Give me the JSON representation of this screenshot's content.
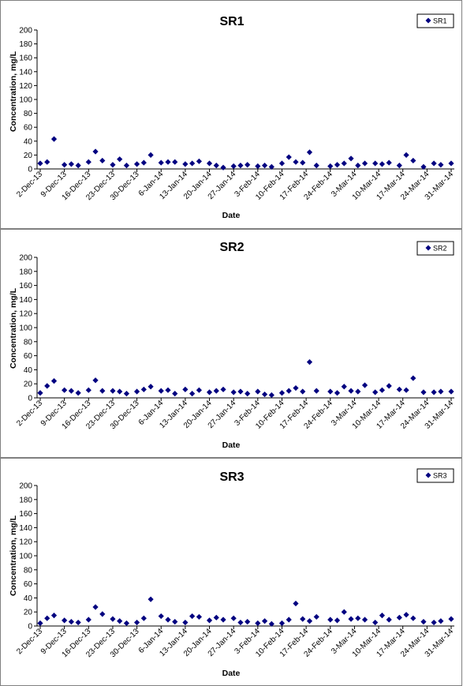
{
  "chart_data": [
    {
      "type": "scatter",
      "title": "SR1",
      "xlabel": "Date",
      "ylabel": "Concentration, mg/L",
      "ylim": [
        0,
        200
      ],
      "yticks": [
        0,
        20,
        40,
        60,
        80,
        100,
        120,
        140,
        160,
        180,
        200
      ],
      "xlim": [
        "2013-12-02",
        "2014-03-31"
      ],
      "xticks": [
        "2-Dec-13",
        "9-Dec-13",
        "16-Dec-13",
        "23-Dec-13",
        "30-Dec-13",
        "6-Jan-14",
        "13-Jan-14",
        "20-Jan-14",
        "27-Jan-14",
        "3-Feb-14",
        "10-Feb-14",
        "17-Feb-14",
        "24-Feb-14",
        "3-Mar-14",
        "10-Mar-14",
        "17-Mar-14",
        "24-Mar-14",
        "31-Mar-14"
      ],
      "legend": "top-right",
      "grid": false,
      "marker_color": "#000080",
      "series": [
        {
          "name": "SR1",
          "points": [
            [
              "2013-12-02",
              8
            ],
            [
              "2013-12-04",
              10
            ],
            [
              "2013-12-06",
              43
            ],
            [
              "2013-12-09",
              6
            ],
            [
              "2013-12-11",
              7
            ],
            [
              "2013-12-13",
              5
            ],
            [
              "2013-12-16",
              10
            ],
            [
              "2013-12-18",
              25
            ],
            [
              "2013-12-20",
              12
            ],
            [
              "2013-12-23",
              6
            ],
            [
              "2013-12-25",
              14
            ],
            [
              "2013-12-27",
              5
            ],
            [
              "2013-12-30",
              7
            ],
            [
              "2014-01-01",
              9
            ],
            [
              "2014-01-03",
              20
            ],
            [
              "2014-01-06",
              9
            ],
            [
              "2014-01-08",
              10
            ],
            [
              "2014-01-10",
              10
            ],
            [
              "2014-01-13",
              7
            ],
            [
              "2014-01-15",
              8
            ],
            [
              "2014-01-17",
              11
            ],
            [
              "2014-01-20",
              8
            ],
            [
              "2014-01-22",
              5
            ],
            [
              "2014-01-24",
              2
            ],
            [
              "2014-01-27",
              4
            ],
            [
              "2014-01-29",
              5
            ],
            [
              "2014-01-31",
              6
            ],
            [
              "2014-02-03",
              4
            ],
            [
              "2014-02-05",
              5
            ],
            [
              "2014-02-07",
              3
            ],
            [
              "2014-02-10",
              8
            ],
            [
              "2014-02-12",
              17
            ],
            [
              "2014-02-14",
              10
            ],
            [
              "2014-02-16",
              9
            ],
            [
              "2014-02-18",
              24
            ],
            [
              "2014-02-20",
              5
            ],
            [
              "2014-02-24",
              4
            ],
            [
              "2014-02-26",
              6
            ],
            [
              "2014-02-28",
              8
            ],
            [
              "2014-03-02",
              15
            ],
            [
              "2014-03-04",
              5
            ],
            [
              "2014-03-06",
              8
            ],
            [
              "2014-03-09",
              8
            ],
            [
              "2014-03-11",
              7
            ],
            [
              "2014-03-13",
              9
            ],
            [
              "2014-03-16",
              5
            ],
            [
              "2014-03-18",
              20
            ],
            [
              "2014-03-20",
              12
            ],
            [
              "2014-03-23",
              3
            ],
            [
              "2014-03-26",
              8
            ],
            [
              "2014-03-28",
              6
            ],
            [
              "2014-03-31",
              8
            ]
          ]
        }
      ]
    },
    {
      "type": "scatter",
      "title": "SR2",
      "xlabel": "Date",
      "ylabel": "Concentration, mg/L",
      "ylim": [
        0,
        200
      ],
      "yticks": [
        0,
        20,
        40,
        60,
        80,
        100,
        120,
        140,
        160,
        180,
        200
      ],
      "xlim": [
        "2013-12-02",
        "2014-03-31"
      ],
      "xticks": [
        "2-Dec-13",
        "9-Dec-13",
        "16-Dec-13",
        "23-Dec-13",
        "30-Dec-13",
        "6-Jan-14",
        "13-Jan-14",
        "20-Jan-14",
        "27-Jan-14",
        "3-Feb-14",
        "10-Feb-14",
        "17-Feb-14",
        "24-Feb-14",
        "3-Mar-14",
        "10-Mar-14",
        "17-Mar-14",
        "24-Mar-14",
        "31-Mar-14"
      ],
      "legend": "top-right",
      "grid": false,
      "marker_color": "#000080",
      "series": [
        {
          "name": "SR2",
          "points": [
            [
              "2013-12-02",
              7
            ],
            [
              "2013-12-04",
              17
            ],
            [
              "2013-12-06",
              24
            ],
            [
              "2013-12-09",
              11
            ],
            [
              "2013-12-11",
              10
            ],
            [
              "2013-12-13",
              7
            ],
            [
              "2013-12-16",
              11
            ],
            [
              "2013-12-18",
              25
            ],
            [
              "2013-12-20",
              10
            ],
            [
              "2013-12-23",
              10
            ],
            [
              "2013-12-25",
              9
            ],
            [
              "2013-12-27",
              6
            ],
            [
              "2013-12-30",
              9
            ],
            [
              "2014-01-01",
              12
            ],
            [
              "2014-01-03",
              16
            ],
            [
              "2014-01-06",
              10
            ],
            [
              "2014-01-08",
              11
            ],
            [
              "2014-01-10",
              6
            ],
            [
              "2014-01-13",
              12
            ],
            [
              "2014-01-15",
              6
            ],
            [
              "2014-01-17",
              11
            ],
            [
              "2014-01-20",
              8
            ],
            [
              "2014-01-22",
              10
            ],
            [
              "2014-01-24",
              12
            ],
            [
              "2014-01-27",
              8
            ],
            [
              "2014-01-29",
              9
            ],
            [
              "2014-01-31",
              6
            ],
            [
              "2014-02-03",
              9
            ],
            [
              "2014-02-05",
              5
            ],
            [
              "2014-02-07",
              4
            ],
            [
              "2014-02-10",
              7
            ],
            [
              "2014-02-12",
              10
            ],
            [
              "2014-02-14",
              14
            ],
            [
              "2014-02-16",
              9
            ],
            [
              "2014-02-18",
              51
            ],
            [
              "2014-02-20",
              10
            ],
            [
              "2014-02-24",
              9
            ],
            [
              "2014-02-26",
              7
            ],
            [
              "2014-02-28",
              16
            ],
            [
              "2014-03-02",
              10
            ],
            [
              "2014-03-04",
              9
            ],
            [
              "2014-03-06",
              18
            ],
            [
              "2014-03-09",
              8
            ],
            [
              "2014-03-11",
              11
            ],
            [
              "2014-03-13",
              17
            ],
            [
              "2014-03-16",
              12
            ],
            [
              "2014-03-18",
              11
            ],
            [
              "2014-03-20",
              28
            ],
            [
              "2014-03-23",
              8
            ],
            [
              "2014-03-26",
              8
            ],
            [
              "2014-03-28",
              9
            ],
            [
              "2014-03-31",
              9
            ]
          ]
        }
      ]
    },
    {
      "type": "scatter",
      "title": "SR3",
      "xlabel": "Date",
      "ylabel": "Concentration, mg/L",
      "ylim": [
        0,
        200
      ],
      "yticks": [
        0,
        20,
        40,
        60,
        80,
        100,
        120,
        140,
        160,
        180,
        200
      ],
      "xlim": [
        "2013-12-02",
        "2014-03-31"
      ],
      "xticks": [
        "2-Dec-13",
        "9-Dec-13",
        "16-Dec-13",
        "23-Dec-13",
        "30-Dec-13",
        "6-Jan-14",
        "13-Jan-14",
        "20-Jan-14",
        "27-Jan-14",
        "3-Feb-14",
        "10-Feb-14",
        "17-Feb-14",
        "24-Feb-14",
        "3-Mar-14",
        "10-Mar-14",
        "17-Mar-14",
        "24-Mar-14",
        "31-Mar-14"
      ],
      "legend": "top-right",
      "grid": false,
      "marker_color": "#000080",
      "series": [
        {
          "name": "SR3",
          "points": [
            [
              "2013-12-02",
              4
            ],
            [
              "2013-12-04",
              11
            ],
            [
              "2013-12-06",
              15
            ],
            [
              "2013-12-09",
              8
            ],
            [
              "2013-12-11",
              6
            ],
            [
              "2013-12-13",
              5
            ],
            [
              "2013-12-16",
              9
            ],
            [
              "2013-12-18",
              27
            ],
            [
              "2013-12-20",
              17
            ],
            [
              "2013-12-23",
              10
            ],
            [
              "2013-12-25",
              7
            ],
            [
              "2013-12-27",
              4
            ],
            [
              "2013-12-30",
              5
            ],
            [
              "2014-01-01",
              11
            ],
            [
              "2014-01-03",
              38
            ],
            [
              "2014-01-06",
              14
            ],
            [
              "2014-01-08",
              9
            ],
            [
              "2014-01-10",
              6
            ],
            [
              "2014-01-13",
              5
            ],
            [
              "2014-01-15",
              14
            ],
            [
              "2014-01-17",
              13
            ],
            [
              "2014-01-20",
              8
            ],
            [
              "2014-01-22",
              12
            ],
            [
              "2014-01-24",
              9
            ],
            [
              "2014-01-27",
              11
            ],
            [
              "2014-01-29",
              5
            ],
            [
              "2014-01-31",
              6
            ],
            [
              "2014-02-03",
              4
            ],
            [
              "2014-02-05",
              7
            ],
            [
              "2014-02-07",
              3
            ],
            [
              "2014-02-10",
              4
            ],
            [
              "2014-02-12",
              9
            ],
            [
              "2014-02-14",
              32
            ],
            [
              "2014-02-16",
              10
            ],
            [
              "2014-02-18",
              7
            ],
            [
              "2014-02-20",
              13
            ],
            [
              "2014-02-24",
              9
            ],
            [
              "2014-02-26",
              8
            ],
            [
              "2014-02-28",
              20
            ],
            [
              "2014-03-02",
              10
            ],
            [
              "2014-03-04",
              11
            ],
            [
              "2014-03-06",
              9
            ],
            [
              "2014-03-09",
              5
            ],
            [
              "2014-03-11",
              15
            ],
            [
              "2014-03-13",
              9
            ],
            [
              "2014-03-16",
              12
            ],
            [
              "2014-03-18",
              16
            ],
            [
              "2014-03-20",
              11
            ],
            [
              "2014-03-23",
              6
            ],
            [
              "2014-03-26",
              5
            ],
            [
              "2014-03-28",
              7
            ],
            [
              "2014-03-31",
              10
            ]
          ]
        }
      ]
    }
  ]
}
